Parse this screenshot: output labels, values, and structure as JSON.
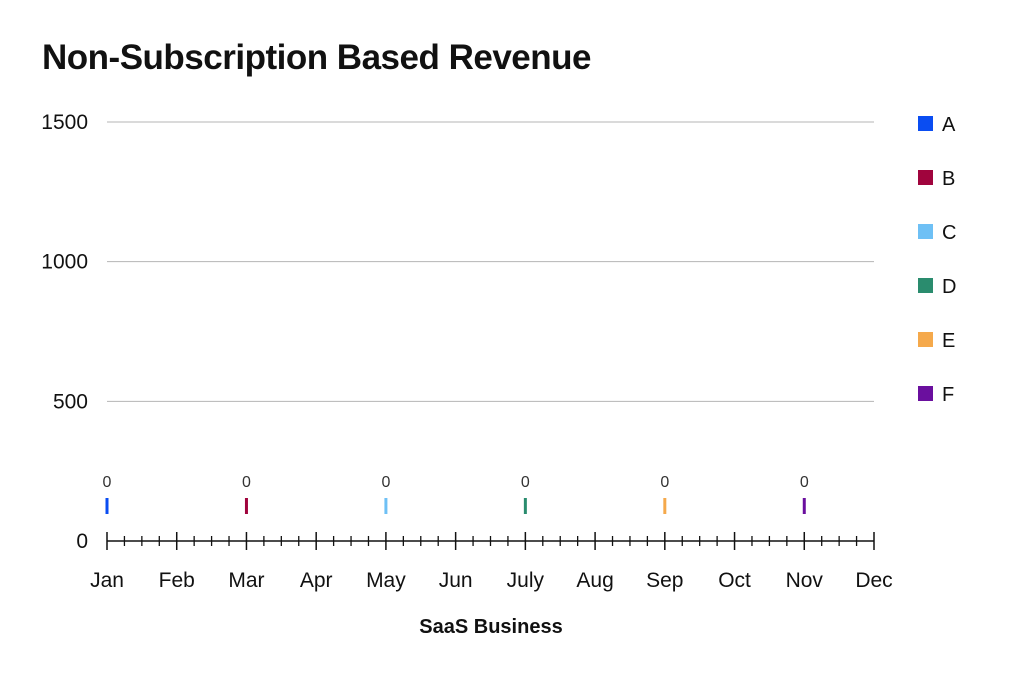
{
  "chart_data": {
    "type": "bar",
    "title": "Non-Subscription Based Revenue",
    "xlabel": "SaaS Business",
    "ylabel": "",
    "ylim": [
      0,
      1500
    ],
    "yticks": [
      0,
      500,
      1000,
      1500
    ],
    "grid": true,
    "legend_position": "right",
    "months": [
      "Jan",
      "Feb",
      "Mar",
      "Apr",
      "May",
      "Jun",
      "July",
      "Aug",
      "Sep",
      "Oct",
      "Nov",
      "Dec"
    ],
    "series": [
      {
        "name": "A",
        "color": "#0a4df2",
        "month": "Jan",
        "value": 0,
        "label": "0"
      },
      {
        "name": "B",
        "color": "#a0043d",
        "month": "Mar",
        "value": 0,
        "label": "0"
      },
      {
        "name": "C",
        "color": "#6ec0f5",
        "month": "May",
        "value": 0,
        "label": "0"
      },
      {
        "name": "D",
        "color": "#2a8c6e",
        "month": "July",
        "value": 0,
        "label": "0"
      },
      {
        "name": "E",
        "color": "#f5a94b",
        "month": "Sep",
        "value": 0,
        "label": "0"
      },
      {
        "name": "F",
        "color": "#6a0f9e",
        "month": "Nov",
        "value": 0,
        "label": "0"
      }
    ]
  }
}
